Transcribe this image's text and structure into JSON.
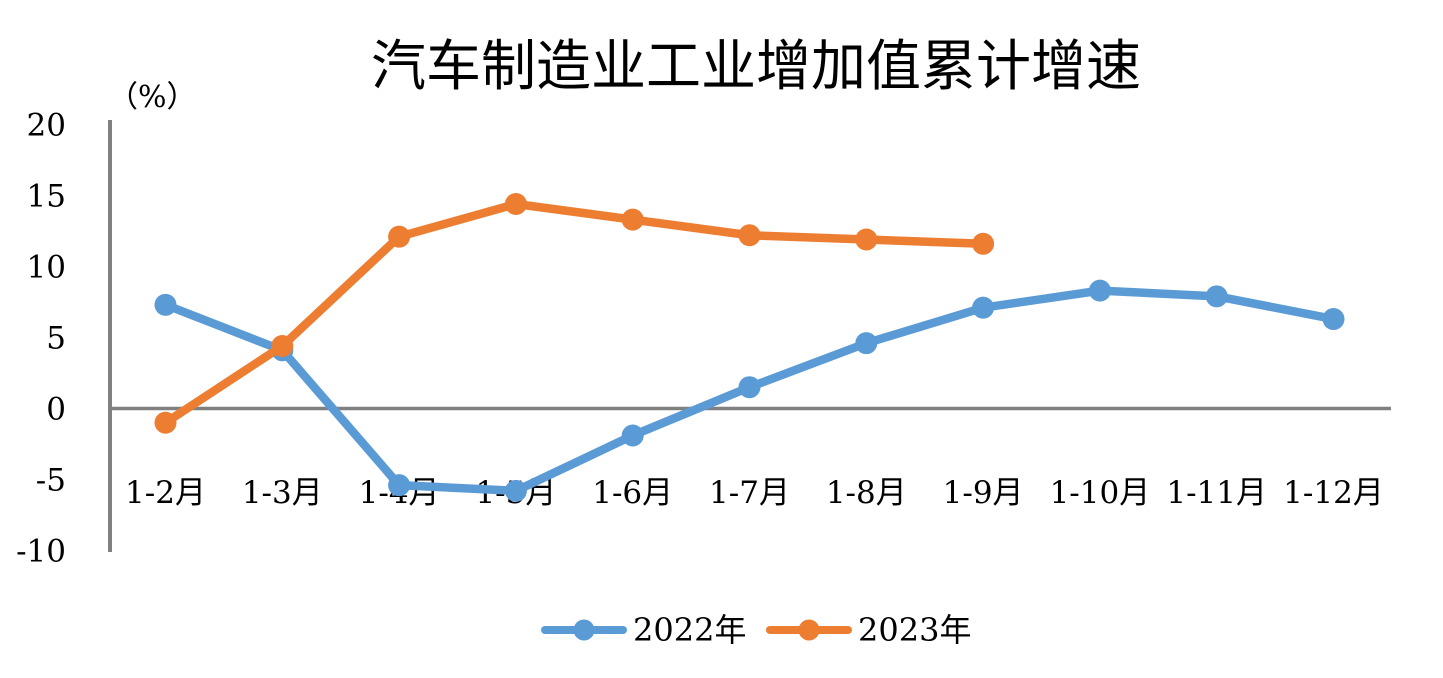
{
  "chart_data": {
    "type": "line",
    "title": "汽车制造业工业增加值累计增速",
    "ylabel": "（%）",
    "xlabel": "",
    "ylim": [
      -10,
      20
    ],
    "y_ticks": [
      20,
      15,
      10,
      5,
      0,
      -5,
      -10
    ],
    "grid": false,
    "legend_position": "bottom-center",
    "axis_color": "#808080",
    "negative_tick_color": "#FF0000",
    "positive_tick_color": "#000000",
    "categories": [
      "1-2月",
      "1-3月",
      "1-4月",
      "1-5月",
      "1-6月",
      "1-7月",
      "1-8月",
      "1-9月",
      "1-10月",
      "1-11月",
      "1-12月"
    ],
    "series": [
      {
        "name": "2022年",
        "color": "#5B9BD5",
        "values": [
          7.3,
          4.1,
          -5.4,
          -5.8,
          -1.9,
          1.5,
          4.6,
          7.1,
          8.3,
          7.9,
          6.3
        ]
      },
      {
        "name": "2023年",
        "color": "#ED7D31",
        "values": [
          -1.0,
          4.4,
          12.1,
          14.4,
          13.3,
          12.2,
          11.9,
          11.6
        ]
      }
    ]
  }
}
